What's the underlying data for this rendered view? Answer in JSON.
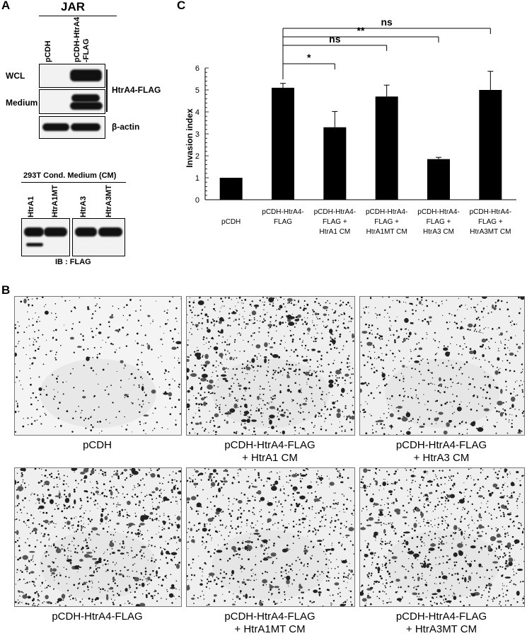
{
  "panelA": {
    "letter": "A",
    "cell_line": "JAR",
    "lane1": "pCDH",
    "lane2_line1": "pCDH-HtrA4",
    "lane2_line2": "-FLAG",
    "row_wcl": "WCL",
    "row_medium": "Medium",
    "bracket_label": "HtrA4-FLAG",
    "actin_label": "β-actin",
    "cm_title": "293T Cond. Medium (CM)",
    "cm_lanes": [
      "HtrA1",
      "HtrA1MT",
      "HtrA3",
      "HtrA3MT"
    ],
    "ib_label": "IB : FLAG"
  },
  "panelB": {
    "letter": "B",
    "captions": [
      [
        "pCDH",
        ""
      ],
      [
        "pCDH-HtrA4-FLAG",
        "+ HtrA1 CM"
      ],
      [
        "pCDH-HtrA4-FLAG",
        "+ HtrA3 CM"
      ],
      [
        "pCDH-HtrA4-FLAG",
        ""
      ],
      [
        "pCDH-HtrA4-FLAG",
        "+ HtrA1MT CM"
      ],
      [
        "pCDH-HtrA4-FLAG",
        "+ HtrA3MT CM"
      ]
    ]
  },
  "panelC": {
    "letter": "C",
    "chart_data": {
      "type": "bar",
      "categories": [
        [
          "pCDH"
        ],
        [
          "pCDH-HtrA4-",
          "FLAG"
        ],
        [
          "pCDH-HtrA4-",
          "FLAG +",
          "HtrA1 CM"
        ],
        [
          "pCDH-HtrA4-",
          "FLAG +",
          "HtrA1MT CM"
        ],
        [
          "pCDH-HtrA4-",
          "FLAG +",
          "HtrA3 CM"
        ],
        [
          "pCDH-HtrA4-",
          "FLAG +",
          "HtrA3MT CM"
        ]
      ],
      "values": [
        1.0,
        5.1,
        3.3,
        4.7,
        1.85,
        5.0
      ],
      "errors": [
        0,
        0.2,
        0.72,
        0.52,
        0.08,
        0.85
      ],
      "ylabel": "Invasion index",
      "ylim": [
        0,
        6
      ],
      "yticks": [
        0,
        1,
        2,
        3,
        4,
        5,
        6
      ],
      "significance": [
        {
          "from": 1,
          "to": 2,
          "label": "*"
        },
        {
          "from": 1,
          "to": 3,
          "label": "ns"
        },
        {
          "from": 1,
          "to": 4,
          "label": "**"
        },
        {
          "from": 1,
          "to": 5,
          "label": "ns"
        }
      ]
    }
  }
}
